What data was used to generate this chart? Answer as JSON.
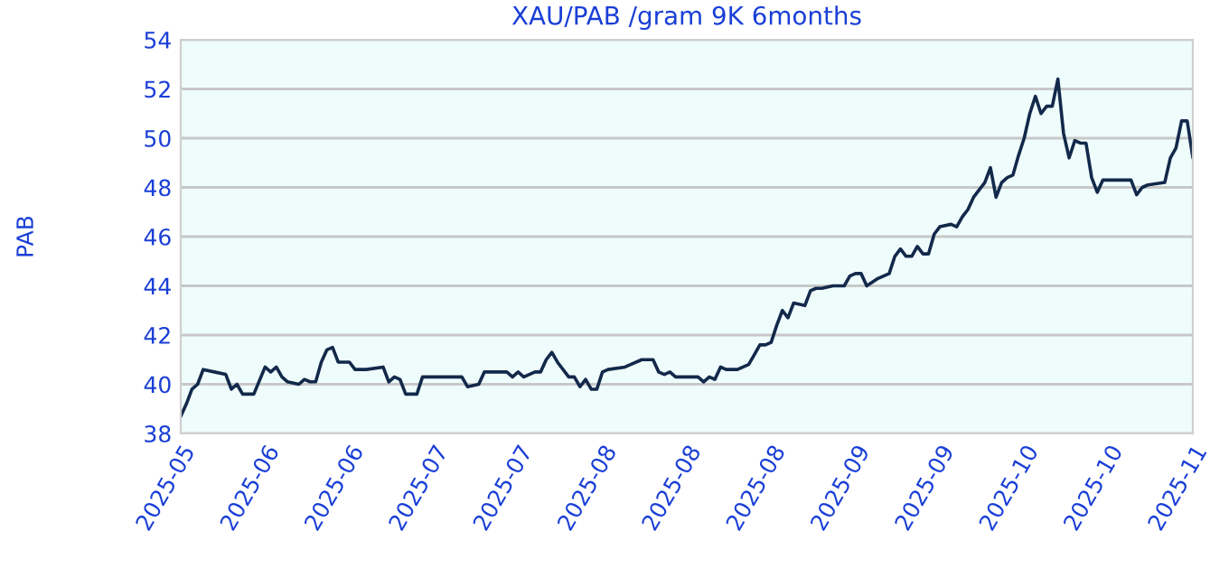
{
  "chart_data": {
    "type": "line",
    "title": "XAU/PAB /gram 9K 6months",
    "ylabel": "PAB",
    "xlim": [
      "2025-05-18",
      "2025-11-14"
    ],
    "ylim": [
      38,
      54
    ],
    "yticks": [
      38,
      40,
      42,
      44,
      46,
      48,
      50,
      52,
      54
    ],
    "xticks": [
      {
        "value": "2025-05-18",
        "label": "2025-05"
      },
      {
        "value": "2025-06-02",
        "label": "2025-06"
      },
      {
        "value": "2025-06-17",
        "label": "2025-06"
      },
      {
        "value": "2025-07-02",
        "label": "2025-07"
      },
      {
        "value": "2025-07-17",
        "label": "2025-07"
      },
      {
        "value": "2025-08-01",
        "label": "2025-08"
      },
      {
        "value": "2025-08-16",
        "label": "2025-08"
      },
      {
        "value": "2025-08-31",
        "label": "2025-08"
      },
      {
        "value": "2025-09-15",
        "label": "2025-09"
      },
      {
        "value": "2025-09-30",
        "label": "2025-09"
      },
      {
        "value": "2025-10-15",
        "label": "2025-10"
      },
      {
        "value": "2025-10-30",
        "label": "2025-10"
      },
      {
        "value": "2025-11-14",
        "label": "2025-11"
      }
    ],
    "grid": "y",
    "legend": false,
    "marker": "none",
    "line_style": "solid",
    "x": [
      "2025-05-18",
      "2025-05-19",
      "2025-05-20",
      "2025-05-21",
      "2025-05-22",
      "2025-05-24",
      "2025-05-26",
      "2025-05-27",
      "2025-05-28",
      "2025-05-29",
      "2025-05-30",
      "2025-05-31",
      "2025-06-02",
      "2025-06-03",
      "2025-06-04",
      "2025-06-05",
      "2025-06-06",
      "2025-06-08",
      "2025-06-09",
      "2025-06-10",
      "2025-06-11",
      "2025-06-12",
      "2025-06-13",
      "2025-06-14",
      "2025-06-15",
      "2025-06-17",
      "2025-06-18",
      "2025-06-20",
      "2025-06-23",
      "2025-06-24",
      "2025-06-25",
      "2025-06-26",
      "2025-06-27",
      "2025-06-28",
      "2025-06-29",
      "2025-06-30",
      "2025-07-02",
      "2025-07-05",
      "2025-07-07",
      "2025-07-08",
      "2025-07-10",
      "2025-07-11",
      "2025-07-13",
      "2025-07-15",
      "2025-07-16",
      "2025-07-17",
      "2025-07-18",
      "2025-07-20",
      "2025-07-21",
      "2025-07-22",
      "2025-07-23",
      "2025-07-24",
      "2025-07-26",
      "2025-07-27",
      "2025-07-28",
      "2025-07-29",
      "2025-07-30",
      "2025-07-31",
      "2025-08-01",
      "2025-08-02",
      "2025-08-05",
      "2025-08-06",
      "2025-08-08",
      "2025-08-10",
      "2025-08-11",
      "2025-08-12",
      "2025-08-13",
      "2025-08-14",
      "2025-08-16",
      "2025-08-18",
      "2025-08-19",
      "2025-08-20",
      "2025-08-21",
      "2025-08-22",
      "2025-08-23",
      "2025-08-25",
      "2025-08-27",
      "2025-08-28",
      "2025-08-29",
      "2025-08-30",
      "2025-08-31",
      "2025-09-01",
      "2025-09-02",
      "2025-09-03",
      "2025-09-04",
      "2025-09-06",
      "2025-09-07",
      "2025-09-08",
      "2025-09-09",
      "2025-09-11",
      "2025-09-13",
      "2025-09-14",
      "2025-09-15",
      "2025-09-16",
      "2025-09-17",
      "2025-09-19",
      "2025-09-21",
      "2025-09-22",
      "2025-09-23",
      "2025-09-24",
      "2025-09-25",
      "2025-09-26",
      "2025-09-27",
      "2025-09-28",
      "2025-09-29",
      "2025-09-30",
      "2025-10-02",
      "2025-10-03",
      "2025-10-04",
      "2025-10-05",
      "2025-10-06",
      "2025-10-08",
      "2025-10-09",
      "2025-10-10",
      "2025-10-11",
      "2025-10-12",
      "2025-10-13",
      "2025-10-14",
      "2025-10-15",
      "2025-10-16",
      "2025-10-17",
      "2025-10-18",
      "2025-10-19",
      "2025-10-20",
      "2025-10-21",
      "2025-10-22",
      "2025-10-23",
      "2025-10-24",
      "2025-10-25",
      "2025-10-26",
      "2025-10-27",
      "2025-10-28",
      "2025-10-29",
      "2025-10-30",
      "2025-10-31",
      "2025-11-03",
      "2025-11-04",
      "2025-11-05",
      "2025-11-06",
      "2025-11-09",
      "2025-11-10",
      "2025-11-11",
      "2025-11-12",
      "2025-11-13",
      "2025-11-14"
    ],
    "series": [
      {
        "color": "#13294b",
        "values": [
          38.7,
          39.2,
          39.8,
          40.0,
          40.6,
          40.5,
          40.4,
          39.8,
          40.0,
          39.6,
          39.6,
          39.6,
          40.7,
          40.5,
          40.7,
          40.3,
          40.1,
          40.0,
          40.2,
          40.1,
          40.1,
          40.9,
          41.4,
          41.5,
          40.9,
          40.9,
          40.6,
          40.6,
          40.7,
          40.1,
          40.3,
          40.2,
          39.6,
          39.6,
          39.6,
          40.3,
          40.3,
          40.3,
          40.3,
          39.9,
          40.0,
          40.5,
          40.5,
          40.5,
          40.3,
          40.5,
          40.3,
          40.5,
          40.5,
          41.0,
          41.3,
          40.9,
          40.3,
          40.3,
          39.9,
          40.2,
          39.8,
          39.8,
          40.5,
          40.6,
          40.7,
          40.8,
          41.0,
          41.0,
          40.5,
          40.4,
          40.5,
          40.3,
          40.3,
          40.3,
          40.1,
          40.3,
          40.2,
          40.7,
          40.6,
          40.6,
          40.8,
          41.2,
          41.6,
          41.6,
          41.7,
          42.4,
          43.0,
          42.7,
          43.3,
          43.2,
          43.8,
          43.9,
          43.9,
          44.0,
          44.0,
          44.4,
          44.5,
          44.5,
          44.0,
          44.3,
          44.5,
          45.2,
          45.5,
          45.2,
          45.2,
          45.6,
          45.3,
          45.3,
          46.1,
          46.4,
          46.5,
          46.4,
          46.8,
          47.1,
          47.6,
          48.2,
          48.8,
          47.6,
          48.2,
          48.4,
          48.5,
          49.3,
          50.0,
          51.0,
          51.7,
          51.0,
          51.3,
          51.3,
          52.4,
          50.2,
          49.2,
          49.9,
          49.8,
          49.8,
          48.4,
          47.8,
          48.3,
          48.3,
          48.3,
          48.3,
          47.7,
          48.0,
          48.1,
          48.2,
          49.2,
          49.6,
          50.7,
          50.7,
          49.2
        ]
      }
    ]
  }
}
